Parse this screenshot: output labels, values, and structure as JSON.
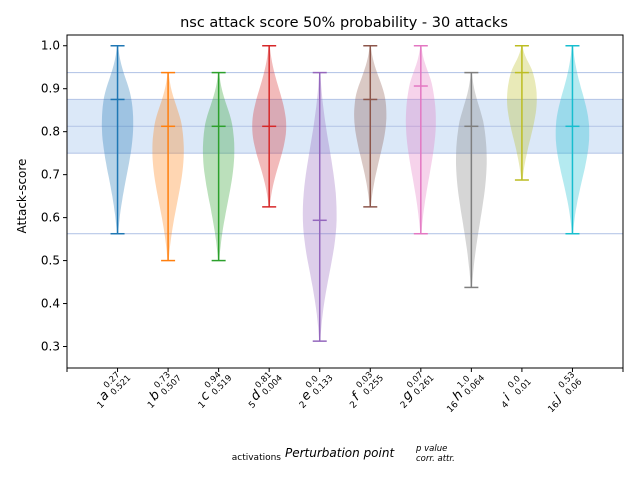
{
  "chart_data": {
    "type": "violin",
    "title": "nsc attack score 50% probability - 30 attacks",
    "ylabel": "Attack-score",
    "xlabel": {
      "sub_left": "activations",
      "main": "Perturbation point",
      "sup_right": "p value",
      "sub_right": "corr. attr."
    },
    "ylim": [
      0.25,
      1.025
    ],
    "yticks": [
      "0.3",
      "0.4",
      "0.5",
      "0.6",
      "0.7",
      "0.8",
      "0.9",
      "1.0"
    ],
    "reference_band": {
      "from": 0.75,
      "to": 0.875,
      "color": "#dbe8f8"
    },
    "reference_lines": [
      0.5625,
      0.75,
      0.8125,
      0.875,
      0.9375
    ],
    "categories": [
      {
        "name": "a",
        "activations": "1",
        "p_value": "0.27",
        "corr_attr": "0.521",
        "min": 0.5625,
        "median": 0.875,
        "max": 1.0,
        "color": "#1f77b4"
      },
      {
        "name": "b",
        "activations": "1",
        "p_value": "0.73",
        "corr_attr": "0.507",
        "min": 0.5,
        "median": 0.8125,
        "max": 0.9375,
        "color": "#ff7f0e"
      },
      {
        "name": "c",
        "activations": "1",
        "p_value": "0.94",
        "corr_attr": "0.519",
        "min": 0.5,
        "median": 0.8125,
        "max": 0.9375,
        "color": "#2ca02c"
      },
      {
        "name": "d",
        "activations": "5",
        "p_value": "0.81",
        "corr_attr": "0.004",
        "min": 0.625,
        "median": 0.8125,
        "max": 1.0,
        "color": "#d62728"
      },
      {
        "name": "e",
        "activations": "2",
        "p_value": "0.0",
        "corr_attr": "0.133",
        "min": 0.3125,
        "median": 0.59375,
        "max": 0.9375,
        "color": "#9467bd"
      },
      {
        "name": "f",
        "activations": "2",
        "p_value": "0.03",
        "corr_attr": "0.255",
        "min": 0.625,
        "median": 0.875,
        "max": 1.0,
        "color": "#8c564b"
      },
      {
        "name": "g",
        "activations": "2",
        "p_value": "0.07",
        "corr_attr": "0.261",
        "min": 0.5625,
        "median": 0.90625,
        "max": 1.0,
        "color": "#e377c2"
      },
      {
        "name": "h",
        "activations": "16",
        "p_value": "1.0",
        "corr_attr": "0.064",
        "min": 0.4375,
        "median": 0.8125,
        "max": 0.9375,
        "color": "#7f7f7f"
      },
      {
        "name": "i",
        "activations": "4",
        "p_value": "0.0",
        "corr_attr": "0.01",
        "min": 0.6875,
        "median": 0.9375,
        "max": 1.0,
        "color": "#bcbd22"
      },
      {
        "name": "j",
        "activations": "16",
        "p_value": "0.53",
        "corr_attr": "0.06",
        "min": 0.5625,
        "median": 0.8125,
        "max": 1.0,
        "color": "#17becf"
      }
    ]
  }
}
